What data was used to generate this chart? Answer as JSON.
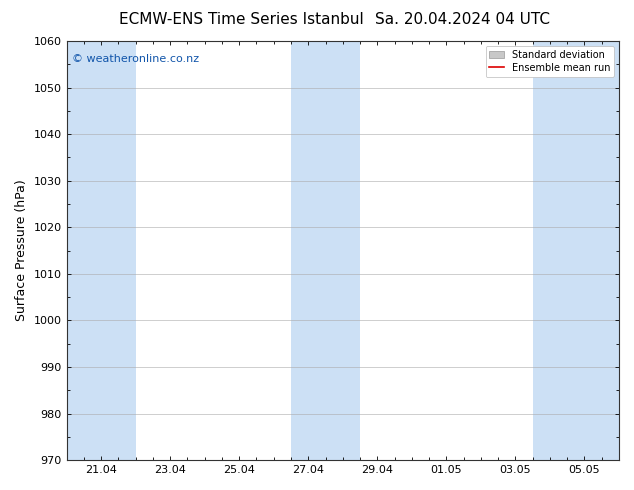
{
  "title_left": "ECMW-ENS Time Series Istanbul",
  "title_right": "Sa. 20.04.2024 04 UTC",
  "ylabel": "Surface Pressure (hPa)",
  "ylim": [
    970,
    1060
  ],
  "yticks": [
    970,
    980,
    990,
    1000,
    1010,
    1020,
    1030,
    1040,
    1050,
    1060
  ],
  "xtick_labels": [
    "21.04",
    "23.04",
    "25.04",
    "27.04",
    "29.04",
    "01.05",
    "03.05",
    "05.05"
  ],
  "plot_bg_color": "#ddeeff",
  "band_color": "#cce0f5",
  "white_color": "#ffffff",
  "watermark_text": "© weatheronline.co.nz",
  "watermark_color": "#1155aa",
  "legend_std_label": "Standard deviation",
  "legend_mean_label": "Ensemble mean run",
  "legend_std_color": "#c8c8c8",
  "legend_mean_color": "#dd0000",
  "title_fontsize": 11,
  "tick_fontsize": 8,
  "ylabel_fontsize": 9,
  "watermark_fontsize": 8
}
